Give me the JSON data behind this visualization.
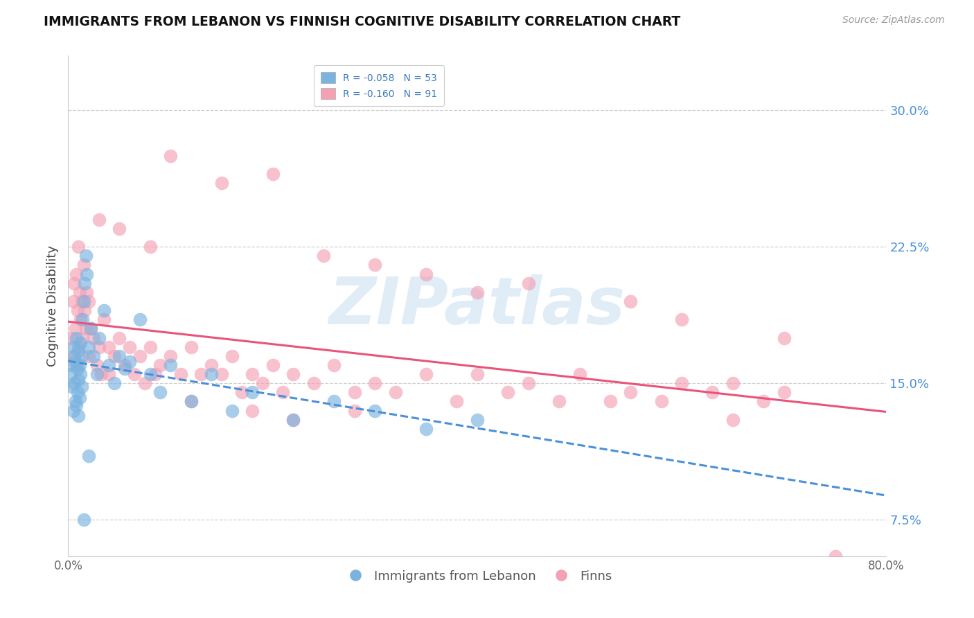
{
  "title": "IMMIGRANTS FROM LEBANON VS FINNISH COGNITIVE DISABILITY CORRELATION CHART",
  "source": "Source: ZipAtlas.com",
  "ylabel": "Cognitive Disability",
  "xlim": [
    0.0,
    80.0
  ],
  "ylim": [
    5.5,
    33.0
  ],
  "yticks": [
    7.5,
    15.0,
    22.5,
    30.0
  ],
  "ytick_labels": [
    "7.5%",
    "15.0%",
    "22.5%",
    "30.0%"
  ],
  "blue_R": -0.058,
  "blue_N": 53,
  "pink_R": -0.16,
  "pink_N": 91,
  "blue_color": "#7ab3e0",
  "pink_color": "#f4a0b5",
  "blue_scatter_x": [
    0.2,
    0.3,
    0.4,
    0.5,
    0.5,
    0.6,
    0.6,
    0.7,
    0.7,
    0.8,
    0.8,
    0.9,
    0.9,
    1.0,
    1.0,
    1.0,
    1.1,
    1.1,
    1.2,
    1.2,
    1.3,
    1.3,
    1.4,
    1.5,
    1.6,
    1.7,
    1.8,
    2.0,
    2.2,
    2.5,
    2.8,
    3.0,
    3.5,
    4.0,
    4.5,
    5.0,
    5.5,
    6.0,
    7.0,
    8.0,
    9.0,
    10.0,
    12.0,
    14.0,
    16.0,
    18.0,
    22.0,
    26.0,
    30.0,
    35.0,
    40.0,
    2.0,
    1.5
  ],
  "blue_scatter_y": [
    16.0,
    15.5,
    14.8,
    17.0,
    13.5,
    16.5,
    15.0,
    16.2,
    14.0,
    17.5,
    13.8,
    15.8,
    14.5,
    16.8,
    15.2,
    13.2,
    16.0,
    14.2,
    17.2,
    15.5,
    16.5,
    14.8,
    18.5,
    19.5,
    20.5,
    22.0,
    21.0,
    17.0,
    18.0,
    16.5,
    15.5,
    17.5,
    19.0,
    16.0,
    15.0,
    16.5,
    15.8,
    16.2,
    18.5,
    15.5,
    14.5,
    16.0,
    14.0,
    15.5,
    13.5,
    14.5,
    13.0,
    14.0,
    13.5,
    12.5,
    13.0,
    11.0,
    7.5
  ],
  "pink_scatter_x": [
    0.3,
    0.5,
    0.5,
    0.6,
    0.7,
    0.8,
    0.8,
    0.9,
    1.0,
    1.0,
    1.1,
    1.2,
    1.3,
    1.4,
    1.5,
    1.6,
    1.7,
    1.8,
    2.0,
    2.0,
    2.2,
    2.5,
    2.8,
    3.0,
    3.2,
    3.5,
    4.0,
    4.0,
    4.5,
    5.0,
    5.5,
    6.0,
    6.5,
    7.0,
    7.5,
    8.0,
    8.5,
    9.0,
    10.0,
    11.0,
    12.0,
    13.0,
    14.0,
    15.0,
    16.0,
    17.0,
    18.0,
    19.0,
    20.0,
    21.0,
    22.0,
    24.0,
    26.0,
    28.0,
    30.0,
    32.0,
    35.0,
    38.0,
    40.0,
    43.0,
    45.0,
    48.0,
    50.0,
    53.0,
    55.0,
    58.0,
    60.0,
    63.0,
    65.0,
    68.0,
    70.0,
    10.0,
    15.0,
    20.0,
    5.0,
    3.0,
    8.0,
    35.0,
    45.0,
    25.0,
    30.0,
    40.0,
    55.0,
    60.0,
    70.0,
    12.0,
    18.0,
    22.0,
    28.0,
    65.0,
    75.0
  ],
  "pink_scatter_y": [
    17.5,
    19.5,
    16.5,
    20.5,
    18.0,
    21.0,
    16.0,
    19.0,
    22.5,
    17.0,
    20.0,
    18.5,
    19.5,
    17.5,
    21.5,
    19.0,
    18.0,
    20.0,
    19.5,
    16.5,
    18.0,
    17.5,
    16.0,
    17.0,
    15.5,
    18.5,
    17.0,
    15.5,
    16.5,
    17.5,
    16.0,
    17.0,
    15.5,
    16.5,
    15.0,
    17.0,
    15.5,
    16.0,
    16.5,
    15.5,
    17.0,
    15.5,
    16.0,
    15.5,
    16.5,
    14.5,
    15.5,
    15.0,
    16.0,
    14.5,
    15.5,
    15.0,
    16.0,
    14.5,
    15.0,
    14.5,
    15.5,
    14.0,
    15.5,
    14.5,
    15.0,
    14.0,
    15.5,
    14.0,
    14.5,
    14.0,
    15.0,
    14.5,
    15.0,
    14.0,
    14.5,
    27.5,
    26.0,
    26.5,
    23.5,
    24.0,
    22.5,
    21.0,
    20.5,
    22.0,
    21.5,
    20.0,
    19.5,
    18.5,
    17.5,
    14.0,
    13.5,
    13.0,
    13.5,
    13.0,
    5.5
  ],
  "watermark": "ZIPatlas",
  "legend_color": "#3a7abf",
  "bg_color": "#ffffff",
  "grid_color": "#d0d0d0",
  "tick_color": "#4a90d9"
}
